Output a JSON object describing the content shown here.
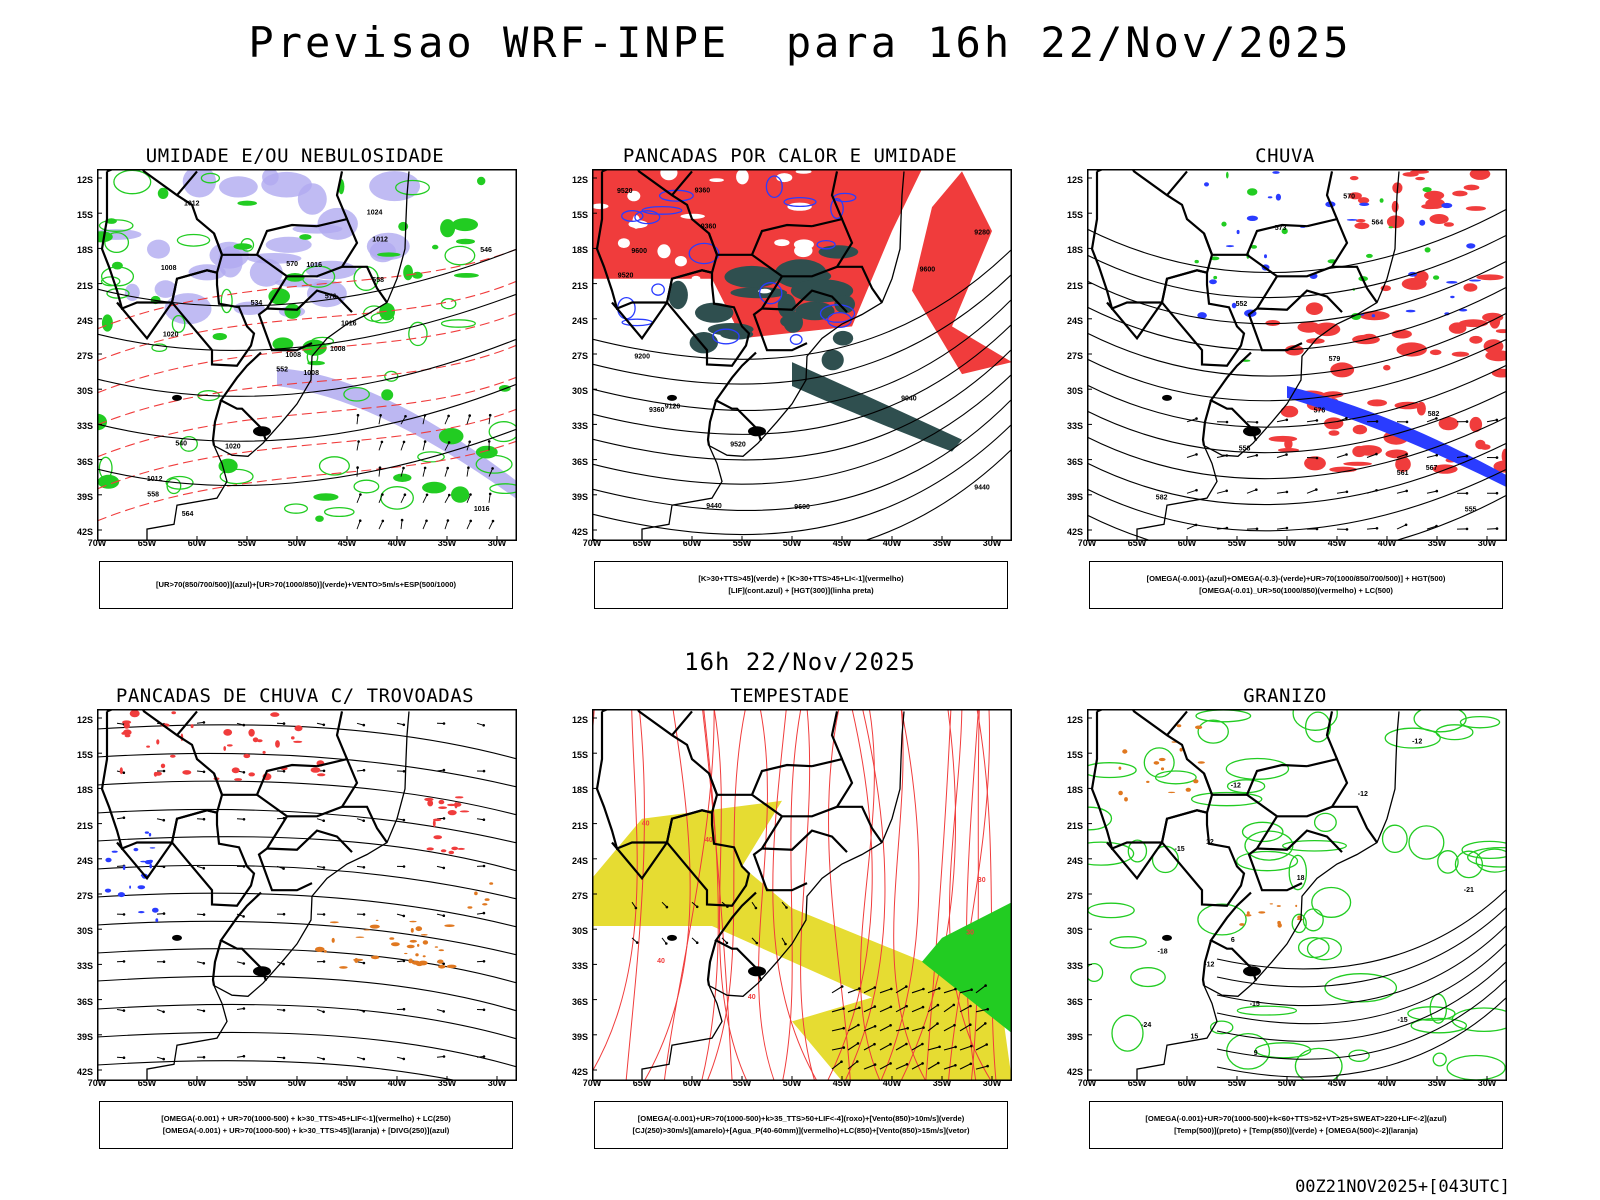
{
  "page": {
    "title": "Previsao WRF-INPE  para 16h 22/Nov/2025",
    "mid_title": "16h 22/Nov/2025",
    "footer": "00Z21NOV2025+[043UTC]"
  },
  "axes": {
    "lat_labels": [
      "12S",
      "15S",
      "18S",
      "21S",
      "24S",
      "27S",
      "30S",
      "33S",
      "36S",
      "39S",
      "42S"
    ],
    "lon_labels": [
      "70W",
      "65W",
      "60W",
      "55W",
      "50W",
      "45W",
      "40W",
      "35W",
      "30W"
    ]
  },
  "colors": {
    "green": "#22cc22",
    "red": "#f03c3c",
    "blue": "#2a3cff",
    "lavender": "#b0aaf0",
    "dark_teal": "#2f4f4f",
    "yellow": "#e6dc32",
    "orange": "#e07820",
    "black": "#000000"
  },
  "panels": [
    {
      "id": "umidade",
      "title": "UMIDADE E/OU NEBULOSIDADE",
      "legend": [
        "[UR>70(850/700/500)](azul)+[UR>70(1000/850)](verde)+VENTO>5m/s+ESP(500/1000)"
      ],
      "contour_labels": [
        "1008",
        "1008",
        "1008",
        "1012",
        "1016",
        "1020",
        "1024",
        "1016",
        "1012",
        "1008",
        "1012",
        "1016",
        "1020",
        "546",
        "552",
        "558",
        "564",
        "570",
        "576",
        "540",
        "534",
        "558"
      ]
    },
    {
      "id": "pancadas-calor",
      "title": "PANCADAS POR CALOR E UMIDADE",
      "legend": [
        "[K>30+TTS>45](verde) + [K>30+TTS>45+LI<-1](vermelho)",
        "[LIF](cont.azul) + [HGT(300)](linha preta)"
      ],
      "contour_labels": [
        "9600",
        "9600",
        "9520",
        "9520",
        "9520",
        "9440",
        "9440",
        "9360",
        "9360",
        "9280",
        "9200",
        "9120",
        "9040",
        "9360",
        "9600"
      ]
    },
    {
      "id": "chuva",
      "title": "CHUVA",
      "legend": [
        "[OMEGA(-0.001)-(azul)+OMEGA(-0.3)-(verde)+UR>70(1000/850/700/500)] + HGT(500)",
        "[OMEGA(-0.01)_UR>50(1000/850)(vermelho) + LC(500)"
      ],
      "contour_labels": [
        "582",
        "582",
        "579",
        "576",
        "573",
        "570",
        "567",
        "564",
        "561",
        "558",
        "555",
        "552"
      ]
    },
    {
      "id": "pancadas-trovoadas",
      "title": "PANCADAS DE CHUVA C/ TROVOADAS",
      "legend": [
        "[OMEGA(-0.001) + UR>70(1000-500) + k>30_TTS>45+LIF<-1](vermelho) + LC(250)",
        "[OMEGA(-0.001) + UR>70(1000-500) + k>30_TTS>45](laranja) + [DIVG(250)](azul)"
      ],
      "contour_labels": []
    },
    {
      "id": "tempestade",
      "title": "TEMPESTADE",
      "legend": [
        "[OMEGA(-0.001)+UR>70(1000-500)+k>35_TTS>50+LIF<-4](roxo)+[Vento(850)>10m/s](verde)",
        "[CJ(250)>30m/s](amarelo)+[Agua_P(40-60mm)](vermelho)+LC(850)+[Vento(850)>15m/s](vetor)"
      ],
      "contour_labels": [
        "40",
        "40",
        "40",
        "40",
        "30",
        "30"
      ]
    },
    {
      "id": "granizo",
      "title": "GRANIZO",
      "legend": [
        "[OMEGA(-0.001)+UR>70(1000-500)+k<60+TTS>52+VT>25+SWEAT>220+LIF<-2](azul)",
        "[Temp(500)](preto) + [Temp(850)](verde) + [OMEGA(500)<-2](laranja)"
      ],
      "contour_labels": [
        "-12",
        "-12",
        "-12",
        "-15",
        "-15",
        "-18",
        "-21",
        "-24",
        "-15",
        "-12",
        "6",
        "9",
        "12",
        "15",
        "18"
      ]
    }
  ]
}
